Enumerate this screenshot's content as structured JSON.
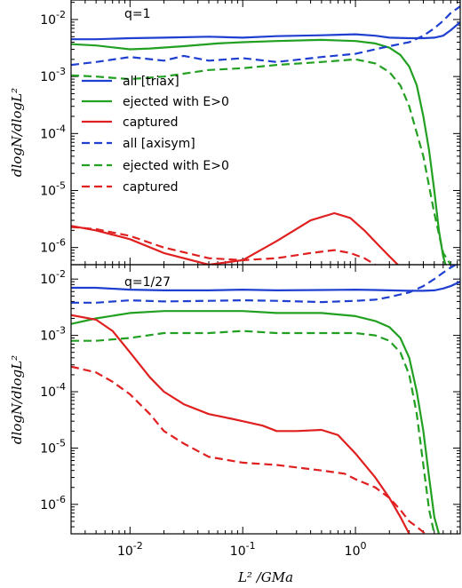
{
  "colors": {
    "blue": "#1f3fd0",
    "green": "#22a022",
    "red": "#e02020"
  },
  "xlabel": "L² /GMa",
  "chart_data": [
    {
      "type": "line",
      "panel_label": "q=1",
      "xscale": "log",
      "yscale": "log",
      "xlim": [
        0.003,
        8.5
      ],
      "ylim": [
        5e-07,
        0.022
      ],
      "ylabel": "dlogN/dlogL²",
      "legend_placement": "left",
      "series": [
        {
          "name": "all [triax]",
          "color": "blue",
          "dash": "solid",
          "x": [
            0.003,
            0.005,
            0.01,
            0.02,
            0.05,
            0.1,
            0.2,
            0.5,
            1,
            1.5,
            2,
            3,
            4,
            5,
            6,
            7,
            8.5
          ],
          "y": [
            0.0045,
            0.0045,
            0.0047,
            0.0048,
            0.005,
            0.0048,
            0.0051,
            0.0053,
            0.0055,
            0.0052,
            0.0048,
            0.0047,
            0.0047,
            0.0048,
            0.0052,
            0.0065,
            0.009
          ]
        },
        {
          "name": "ejected with E>0",
          "color": "green",
          "dash": "solid",
          "x": [
            0.003,
            0.005,
            0.01,
            0.015,
            0.03,
            0.06,
            0.1,
            0.2,
            0.5,
            1,
            1.5,
            2,
            2.5,
            3,
            3.5,
            4,
            4.5,
            5,
            5.5,
            6,
            6.5
          ],
          "y": [
            0.0037,
            0.0035,
            0.003,
            0.0031,
            0.0034,
            0.0038,
            0.004,
            0.0042,
            0.0044,
            0.0042,
            0.0038,
            0.0032,
            0.0024,
            0.0015,
            0.0007,
            0.0002,
            5e-05,
            1e-05,
            2e-06,
            7e-07,
            4e-07
          ]
        },
        {
          "name": "captured",
          "color": "red",
          "dash": "solid",
          "x": [
            0.003,
            0.005,
            0.01,
            0.02,
            0.05,
            0.1,
            0.2,
            0.4,
            0.65,
            0.9,
            1.2,
            1.6,
            2,
            2.5
          ],
          "y": [
            2.4e-06,
            2e-06,
            1.4e-06,
            8e-07,
            5e-07,
            6e-07,
            1.3e-06,
            3e-06,
            4e-06,
            3.3e-06,
            2e-06,
            1.1e-06,
            7e-07,
            4.5e-07
          ]
        },
        {
          "name": "all [axisym]",
          "color": "blue",
          "dash": "dashed",
          "x": [
            0.003,
            0.005,
            0.01,
            0.02,
            0.03,
            0.05,
            0.1,
            0.2,
            0.5,
            1,
            1.5,
            2,
            3,
            4,
            5,
            6,
            7,
            8.5
          ],
          "y": [
            0.0016,
            0.0018,
            0.0022,
            0.0019,
            0.0023,
            0.0019,
            0.0021,
            0.0018,
            0.0022,
            0.0025,
            0.003,
            0.0034,
            0.004,
            0.0052,
            0.007,
            0.0095,
            0.013,
            0.017
          ]
        },
        {
          "name": "ejected with E>0",
          "color": "green",
          "dash": "dashed",
          "x": [
            0.003,
            0.005,
            0.01,
            0.02,
            0.05,
            0.1,
            0.2,
            0.5,
            1,
            1.5,
            2,
            2.5,
            3,
            4,
            5,
            6,
            7
          ],
          "y": [
            0.00105,
            0.001,
            0.0009,
            0.001,
            0.0013,
            0.0014,
            0.0016,
            0.0018,
            0.002,
            0.0017,
            0.0012,
            0.0007,
            0.0003,
            4e-05,
            4e-06,
            8e-07,
            5e-07
          ]
        },
        {
          "name": "captured",
          "color": "red",
          "dash": "dashed",
          "x": [
            0.003,
            0.005,
            0.01,
            0.02,
            0.05,
            0.1,
            0.2,
            0.4,
            0.65,
            0.9,
            1.2,
            1.5
          ],
          "y": [
            2.3e-06,
            2.1e-06,
            1.6e-06,
            1e-06,
            6.5e-07,
            6e-07,
            6.5e-07,
            8e-07,
            9e-07,
            8e-07,
            6.5e-07,
            5e-07
          ]
        }
      ]
    },
    {
      "type": "line",
      "panel_label": "q=1/27",
      "xscale": "log",
      "yscale": "log",
      "xlim": [
        0.003,
        8.5
      ],
      "ylim": [
        3e-07,
        0.018
      ],
      "ylabel": "dlogN/dlogL²",
      "series": [
        {
          "name": "all [triax]",
          "color": "blue",
          "dash": "solid",
          "x": [
            0.003,
            0.005,
            0.01,
            0.02,
            0.05,
            0.1,
            0.2,
            0.5,
            1,
            1.5,
            2,
            3,
            4,
            5,
            6,
            7,
            8.5
          ],
          "y": [
            0.007,
            0.007,
            0.0065,
            0.0063,
            0.0063,
            0.0065,
            0.0063,
            0.0064,
            0.0065,
            0.0064,
            0.0063,
            0.0062,
            0.0062,
            0.0063,
            0.0068,
            0.0075,
            0.009
          ]
        },
        {
          "name": "ejected with E>0",
          "color": "green",
          "dash": "solid",
          "x": [
            0.003,
            0.005,
            0.01,
            0.02,
            0.05,
            0.1,
            0.2,
            0.5,
            1,
            1.5,
            2,
            2.5,
            3,
            3.5,
            4,
            4.5,
            5,
            5.5
          ],
          "y": [
            0.0016,
            0.002,
            0.0025,
            0.0027,
            0.0027,
            0.0027,
            0.0025,
            0.0025,
            0.0022,
            0.0018,
            0.0014,
            0.0009,
            0.0004,
            0.0001,
            2e-05,
            3e-06,
            6e-07,
            3e-07
          ]
        },
        {
          "name": "captured",
          "color": "red",
          "dash": "solid",
          "x": [
            0.003,
            0.005,
            0.007,
            0.01,
            0.015,
            0.02,
            0.03,
            0.05,
            0.08,
            0.1,
            0.15,
            0.2,
            0.3,
            0.5,
            0.7,
            1,
            1.5,
            2,
            2.5,
            3
          ],
          "y": [
            0.0023,
            0.0019,
            0.0012,
            0.0005,
            0.00018,
            0.0001,
            6e-05,
            4e-05,
            3.3e-05,
            3e-05,
            2.5e-05,
            2e-05,
            2e-05,
            2.1e-05,
            1.7e-05,
            8e-06,
            3e-06,
            1.3e-06,
            6e-07,
            3e-07
          ]
        },
        {
          "name": "all [axisym]",
          "color": "blue",
          "dash": "dashed",
          "x": [
            0.003,
            0.005,
            0.01,
            0.02,
            0.05,
            0.1,
            0.2,
            0.5,
            1,
            1.5,
            2,
            3,
            4,
            5,
            6,
            7,
            8.5
          ],
          "y": [
            0.0038,
            0.0038,
            0.0042,
            0.004,
            0.0041,
            0.0042,
            0.0041,
            0.0039,
            0.0041,
            0.0043,
            0.0048,
            0.0058,
            0.0075,
            0.01,
            0.013,
            0.016,
            0.02
          ]
        },
        {
          "name": "ejected with E>0",
          "color": "green",
          "dash": "dashed",
          "x": [
            0.003,
            0.005,
            0.01,
            0.02,
            0.05,
            0.1,
            0.2,
            0.5,
            1,
            1.5,
            2,
            2.5,
            3,
            3.5,
            4,
            4.5,
            5
          ],
          "y": [
            0.0008,
            0.0008,
            0.0009,
            0.0011,
            0.0011,
            0.0012,
            0.0011,
            0.0011,
            0.0011,
            0.001,
            0.0008,
            0.0005,
            0.0002,
            4e-05,
            5e-06,
            8e-07,
            3e-07
          ]
        },
        {
          "name": "captured",
          "color": "red",
          "dash": "dashed",
          "x": [
            0.003,
            0.005,
            0.007,
            0.01,
            0.015,
            0.02,
            0.03,
            0.05,
            0.1,
            0.2,
            0.5,
            0.8,
            1,
            1.5,
            2,
            2.5,
            3,
            3.5,
            4,
            4.5
          ],
          "y": [
            0.00028,
            0.00022,
            0.00015,
            9e-05,
            4e-05,
            2e-05,
            1.2e-05,
            7e-06,
            5.5e-06,
            5e-06,
            4e-06,
            3.5e-06,
            2.8e-06,
            2e-06,
            1.3e-06,
            8e-07,
            5e-07,
            4e-07,
            3.2e-07,
            2.5e-07
          ]
        }
      ]
    }
  ]
}
